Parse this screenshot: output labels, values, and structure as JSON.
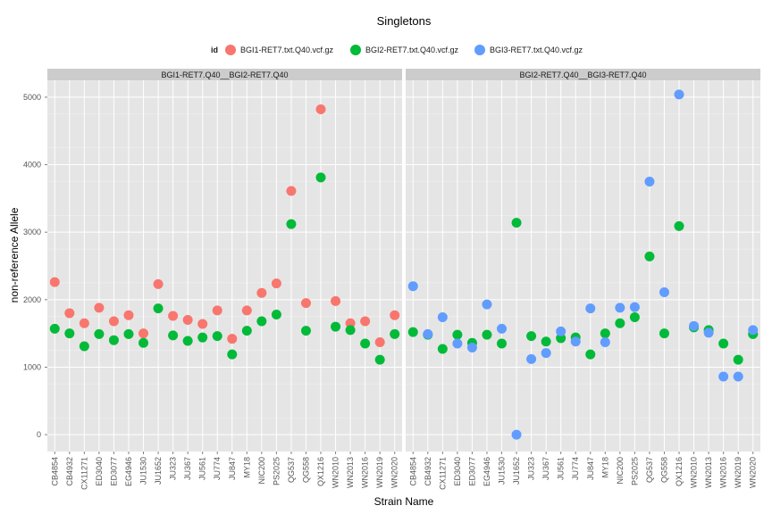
{
  "chart_data": {
    "type": "scatter",
    "title": "Singletons",
    "xlabel": "Strain Name",
    "ylabel": "non-reference Allele",
    "ylim": [
      -250,
      5250
    ],
    "yticks": [
      0,
      1000,
      2000,
      3000,
      4000,
      5000
    ],
    "grid": true,
    "legend_position": "top",
    "legend_title": "id",
    "legend": [
      {
        "name": "BGI1-RET7.txt.Q40.vcf.gz",
        "color": "#F8766D"
      },
      {
        "name": "BGI2-RET7.txt.Q40.vcf.gz",
        "color": "#00BA38"
      },
      {
        "name": "BGI3-RET7.txt.Q40.vcf.gz",
        "color": "#619CFF"
      }
    ],
    "categories": [
      "CB4854",
      "CB4932",
      "CX11271",
      "ED3040",
      "ED3077",
      "EG4946",
      "JU1530",
      "JU1652",
      "JU323",
      "JU367",
      "JU561",
      "JU774",
      "JU847",
      "MY18",
      "NIC200",
      "PS2025",
      "QG537",
      "QG558",
      "QX1216",
      "WN2010",
      "WN2013",
      "WN2016",
      "WN2019",
      "WN2020"
    ],
    "panels": [
      {
        "label": "BGI1-RET7.Q40__BGI2-RET7.Q40",
        "series": [
          {
            "name": "BGI1-RET7.txt.Q40.vcf.gz",
            "color": "#F8766D",
            "values": [
              2260,
              1800,
              1650,
              1880,
              1680,
              1770,
              1500,
              2230,
              1760,
              1700,
              1640,
              1840,
              1420,
              1840,
              2100,
              2240,
              3610,
              1950,
              4820,
              1980,
              1650,
              1680,
              1370,
              1770
            ]
          },
          {
            "name": "BGI2-RET7.txt.Q40.vcf.gz",
            "color": "#00BA38",
            "values": [
              1570,
              1500,
              1310,
              1490,
              1400,
              1490,
              1360,
              1870,
              1470,
              1390,
              1440,
              1460,
              1190,
              1540,
              1680,
              1780,
              3120,
              1540,
              3810,
              1600,
              1550,
              1350,
              1110,
              1490
            ]
          }
        ]
      },
      {
        "label": "BGI2-RET7.Q40__BGI3-RET7.Q40",
        "series": [
          {
            "name": "BGI2-RET7.txt.Q40.vcf.gz",
            "color": "#00BA38",
            "values": [
              1520,
              1480,
              1270,
              1480,
              1360,
              1480,
              1350,
              3140,
              1460,
              1380,
              1430,
              1440,
              1190,
              1500,
              1650,
              1740,
              2640,
              1500,
              3090,
              1590,
              1550,
              1350,
              1110,
              1490
            ]
          },
          {
            "name": "BGI3-RET7.txt.Q40.vcf.gz",
            "color": "#619CFF",
            "values": [
              2200,
              1490,
              1740,
              1350,
              1290,
              1930,
              1570,
              0,
              1120,
              1210,
              1530,
              1380,
              1870,
              1370,
              1880,
              1890,
              3750,
              2110,
              5040,
              1610,
              1510,
              860,
              860,
              1550
            ]
          }
        ]
      }
    ]
  }
}
